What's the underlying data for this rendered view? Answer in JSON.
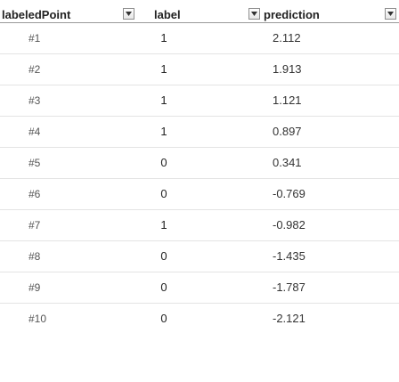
{
  "header": {
    "col_labeledpoint": "labeledPoint",
    "col_label": "label",
    "col_prediction": "prediction",
    "filter_icon": "filter-dropdown-icon"
  },
  "rows": [
    {
      "id": "#1",
      "label": "1",
      "prediction": "2.112"
    },
    {
      "id": "#2",
      "label": "1",
      "prediction": "1.913"
    },
    {
      "id": "#3",
      "label": "1",
      "prediction": "1.121"
    },
    {
      "id": "#4",
      "label": "1",
      "prediction": "0.897"
    },
    {
      "id": "#5",
      "label": "0",
      "prediction": "0.341"
    },
    {
      "id": "#6",
      "label": "0",
      "prediction": "-0.769"
    },
    {
      "id": "#7",
      "label": "1",
      "prediction": "-0.982"
    },
    {
      "id": "#8",
      "label": "0",
      "prediction": "-1.435"
    },
    {
      "id": "#9",
      "label": "0",
      "prediction": "-1.787"
    },
    {
      "id": "#10",
      "label": "0",
      "prediction": "-2.121"
    }
  ]
}
